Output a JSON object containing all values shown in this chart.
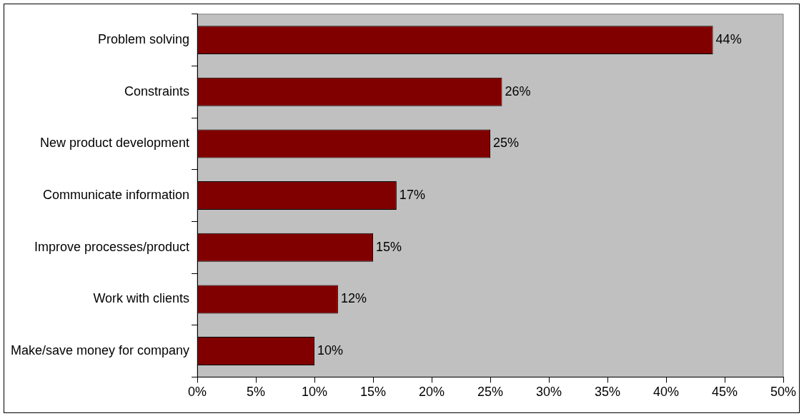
{
  "chart_data": {
    "type": "bar",
    "orientation": "horizontal",
    "categories": [
      "Problem solving",
      "Constraints",
      "New product development",
      "Communicate information",
      "Improve processes/product",
      "Work with clients",
      "Make/save money for company"
    ],
    "values": [
      44,
      26,
      25,
      17,
      15,
      12,
      10
    ],
    "color": "#800000",
    "value_labels": [
      "44%",
      "26%",
      "25%",
      "17%",
      "15%",
      "12%",
      "10%"
    ],
    "xlim": [
      0,
      50
    ],
    "xticks": [
      {
        "value": 0,
        "label": "0%"
      },
      {
        "value": 5,
        "label": "5%"
      },
      {
        "value": 10,
        "label": "10%"
      },
      {
        "value": 15,
        "label": "15%"
      },
      {
        "value": 20,
        "label": "20%"
      },
      {
        "value": 25,
        "label": "25%"
      },
      {
        "value": 30,
        "label": "30%"
      },
      {
        "value": 35,
        "label": "35%"
      },
      {
        "value": 40,
        "label": "40%"
      },
      {
        "value": 45,
        "label": "45%"
      },
      {
        "value": 50,
        "label": "50%"
      }
    ],
    "grid": false,
    "legend": false
  }
}
